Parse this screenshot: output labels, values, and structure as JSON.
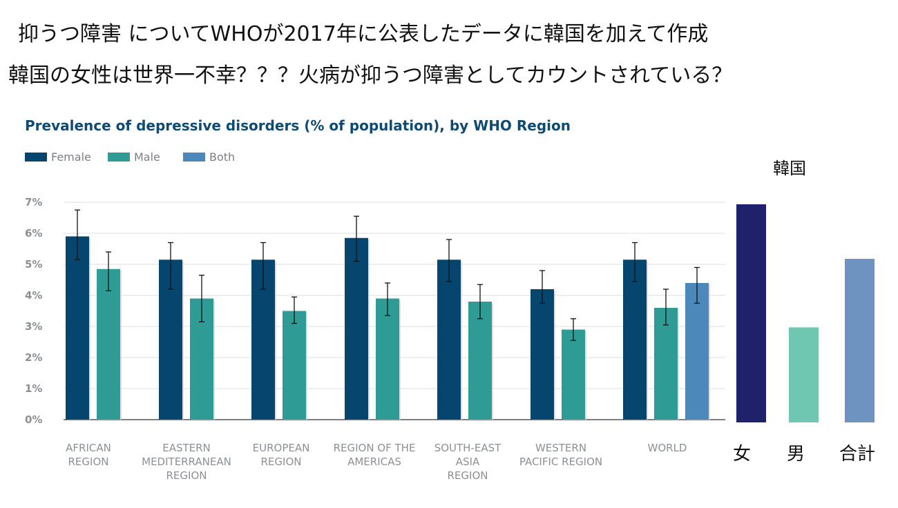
{
  "heading": {
    "line1": "抑うつ障害 についてWHOが2017年に公表したデータに韓国を加えて作成",
    "line2": "韓国の女性は世界一不幸？？？火病が抑うつ障害としてカウントされている？"
  },
  "chart_data": [
    {
      "type": "bar",
      "title": "Prevalence of depressive disorders (% of population), by WHO Region",
      "categories": [
        [
          "AFRICAN",
          "REGION"
        ],
        [
          "EASTERN",
          "MEDITERRANEAN",
          "REGION"
        ],
        [
          "EUROPEAN",
          "REGION"
        ],
        [
          "REGION OF THE",
          "AMERICAS"
        ],
        [
          "SOUTH-EAST",
          "ASIA",
          "REGION"
        ],
        [
          "WESTERN",
          "PACIFIC REGION"
        ],
        [
          "WORLD"
        ]
      ],
      "series": [
        {
          "name": "Female",
          "color": "#05456e",
          "values": [
            5.9,
            5.15,
            5.15,
            5.85,
            5.15,
            4.2,
            5.15
          ],
          "error_low": [
            5.15,
            4.2,
            4.2,
            5.1,
            4.45,
            3.75,
            4.45
          ],
          "error_high": [
            6.75,
            5.7,
            5.7,
            6.55,
            5.8,
            4.8,
            5.7
          ]
        },
        {
          "name": "Male",
          "color": "#2e9c94",
          "values": [
            4.85,
            3.9,
            3.5,
            3.9,
            3.8,
            2.9,
            3.6
          ],
          "error_low": [
            4.15,
            3.15,
            3.1,
            3.35,
            3.25,
            2.55,
            3.05
          ],
          "error_high": [
            5.4,
            4.65,
            3.95,
            4.4,
            4.35,
            3.25,
            4.2
          ]
        },
        {
          "name": "Both",
          "color": "#4d88bb",
          "values": [
            null,
            null,
            null,
            null,
            null,
            null,
            4.4
          ],
          "error_low": [
            null,
            null,
            null,
            null,
            null,
            null,
            3.75
          ],
          "error_high": [
            null,
            null,
            null,
            null,
            null,
            null,
            4.9
          ]
        }
      ],
      "yticks": [
        "0%",
        "1%",
        "2%",
        "3%",
        "4%",
        "5%",
        "6%",
        "7%"
      ],
      "ylim": [
        0,
        7
      ],
      "grid": true,
      "legend": "top-left"
    },
    {
      "type": "bar",
      "title": "韓国",
      "categories": [
        "女",
        "男",
        "合計"
      ],
      "values": [
        7.0,
        3.05,
        5.25
      ],
      "colors": [
        "#1f216b",
        "#6fc7b2",
        "#6e93c0"
      ],
      "ylim": [
        0,
        7
      ]
    }
  ]
}
